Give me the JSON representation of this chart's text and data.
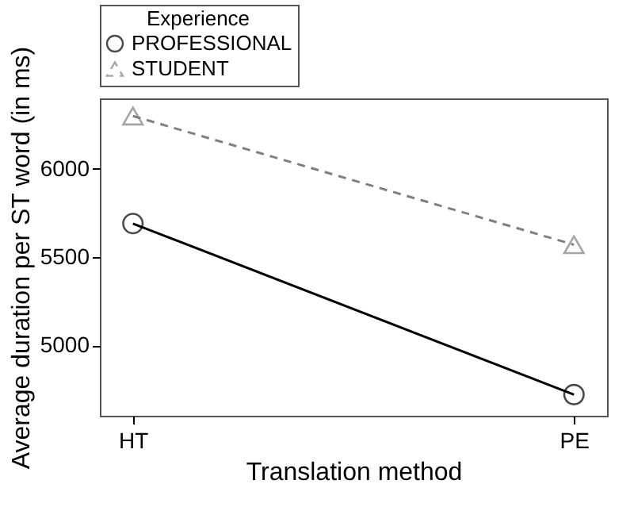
{
  "chart_data": {
    "type": "line",
    "xlabel": "Translation method",
    "ylabel": "Average duration per ST word (in ms)",
    "legend_title": "Experience",
    "categories": [
      "HT",
      "PE"
    ],
    "series": [
      {
        "name": "PROFESSIONAL",
        "color": "#000000",
        "values": [
          5690,
          4720
        ],
        "line_style": "solid",
        "marker": "circle"
      },
      {
        "name": "STUDENT",
        "color": "#808080",
        "values": [
          6300,
          5570
        ],
        "line_style": "dashed",
        "marker": "triangle"
      }
    ],
    "ylim": [
      4600,
      6400
    ],
    "yticks": [
      5000,
      5500,
      6000
    ],
    "grid": false,
    "legend": "top"
  }
}
